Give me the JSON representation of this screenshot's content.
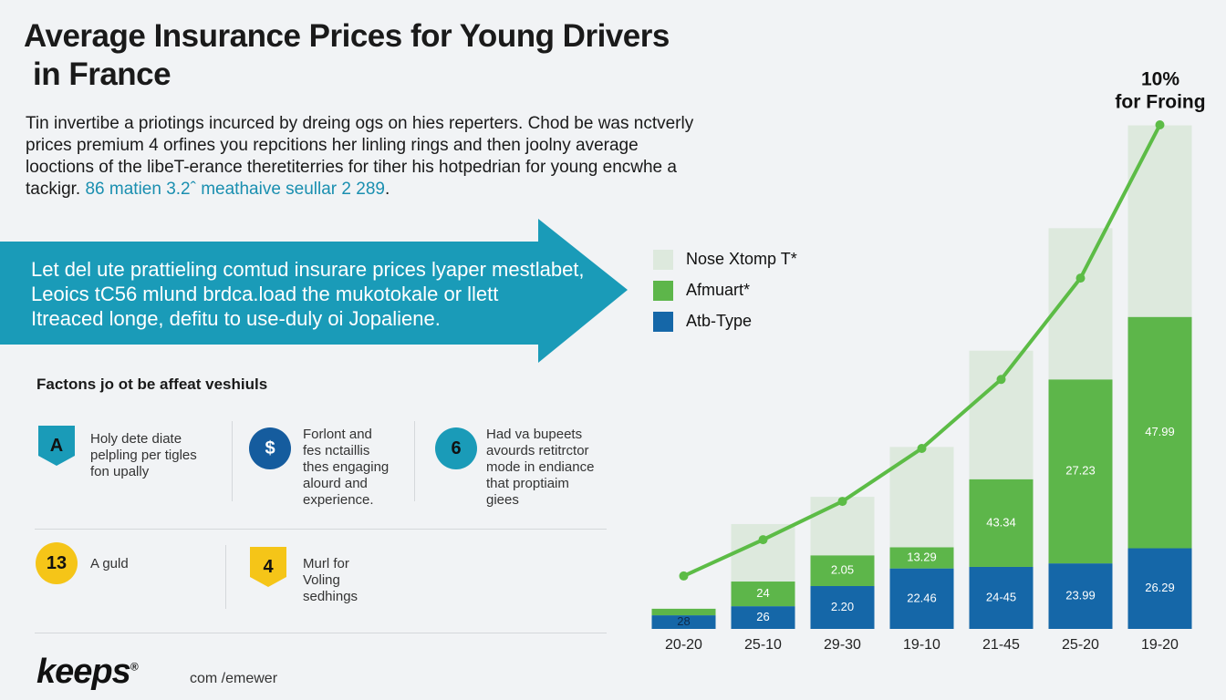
{
  "header": {
    "title_lines": [
      "Average Insurance Prices for Young Drivers",
      "in France"
    ],
    "intro_lines": [
      "Tin invertibe a priotings incurced by dreing ogs on hies reperters. Chod be was nctverly",
      "prices premium 4 orfines you repcitions her linling rings and then joolny average",
      "looctions of the libeT-erance theretiterries for tiher his hotpedrian for young encwhe a",
      "tackigr."
    ],
    "intro_link": "86 matien 3.2ˆ meathaive seullar 2 289",
    "intro_end": "."
  },
  "banner": {
    "lines": [
      "Let del ute prattieling comtud insurare prices lyaper mestlabet,",
      "Leoics tC56 mlund brdca.load the mukotokale or llett",
      "Itreaced longe, defitu to use-duly oi  Jopaliene."
    ]
  },
  "factors": {
    "title": "Factons jo ot be affeat veshiuls",
    "items": [
      {
        "icon": "A",
        "text": [
          "Holy dete diate",
          "pelpling per tigles",
          "fon upally"
        ]
      },
      {
        "icon": "$",
        "text": [
          "Forlont and",
          "fes nctaillis",
          "thes engaging",
          "alourd and",
          "experience."
        ]
      },
      {
        "icon": "6",
        "text": [
          "Had va bupeets",
          "avourds retitrctor",
          "mode in endiance",
          "that proptiaim",
          "giees"
        ]
      },
      {
        "icon": "13",
        "text": [
          "A guld"
        ]
      },
      {
        "icon": "4",
        "text": [
          "Murl for",
          "Voling",
          "sedhings"
        ]
      }
    ]
  },
  "footer": {
    "brand": "keeps",
    "mark": "®",
    "site": "com /emewer"
  },
  "chart_data": {
    "type": "bar",
    "stacked": true,
    "categories": [
      "20-20",
      "25-10",
      "29-30",
      "19-10",
      "21-45",
      "25-20",
      "19-20"
    ],
    "ylim": [
      0,
      100
    ],
    "series": [
      {
        "name": "Nose Xtomp T*",
        "color": "#dde9dd",
        "values": [
          0,
          11.4,
          11.6,
          19.9,
          25.5,
          30,
          38
        ],
        "labels": [
          null,
          null,
          null,
          null,
          null,
          null,
          null
        ]
      },
      {
        "name": "Afmuart*",
        "color": "#5db64a",
        "values": [
          1.3,
          4.9,
          6.1,
          4.2,
          17.4,
          36.5,
          45.9
        ],
        "labels": [
          null,
          "24",
          "2.05",
          "13.29",
          "43.34",
          "27.23",
          "47.99"
        ]
      },
      {
        "name": "Atb-Type",
        "color": "#1567a8",
        "values": [
          2.7,
          4.5,
          8.5,
          12,
          12.3,
          13,
          16
        ],
        "labels": [
          "28",
          "26",
          "2.20",
          "22.46",
          "24-45",
          "23.99",
          "26.29"
        ]
      },
      {
        "type": "line",
        "color": "#5cbc46",
        "values": [
          10.5,
          17.7,
          25.3,
          35.8,
          49.5,
          69.6,
          100
        ]
      }
    ],
    "annotations": [
      "10%",
      "for Froing"
    ]
  }
}
